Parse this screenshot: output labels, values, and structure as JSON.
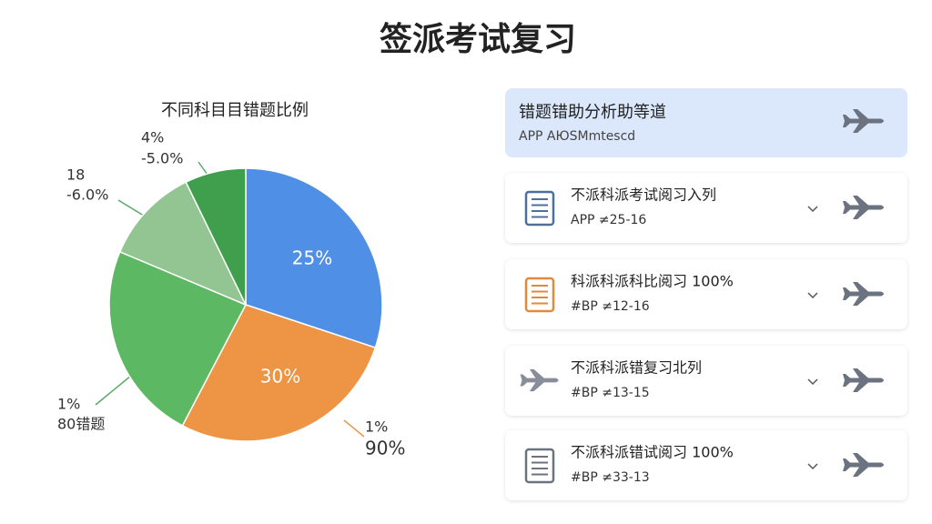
{
  "header": {
    "title": "签派考试复习"
  },
  "chart_data": {
    "type": "pie",
    "title": "不同科目目错题比例",
    "values": [
      30,
      27.5,
      23.6,
      11.4,
      7.2
    ],
    "colors": [
      "#4f8fe6",
      "#ee9545",
      "#5db863",
      "#92c591",
      "#3f9f4d"
    ],
    "annotations": [
      "25%",
      "30%",
      "4%",
      "-5.0%",
      "18",
      "-6.0%",
      "1%",
      "80错题",
      "1%",
      "90%"
    ]
  },
  "panel": {
    "header": {
      "title": "错题错助分析助等道",
      "subtitle": "APP AЮSMmtescd"
    },
    "items": [
      {
        "title": "不派科派考试阅习入列",
        "subtitle": "APP ≠25-16"
      },
      {
        "title": "科派科派科比阅习 100%",
        "subtitle": "#BP ≠12-16"
      },
      {
        "title": "不派科派错复习北列",
        "subtitle": "#BP ≠13-15"
      },
      {
        "title": "不派科派错试阅习 100%",
        "subtitle": "#BP ≠33-13"
      }
    ]
  }
}
